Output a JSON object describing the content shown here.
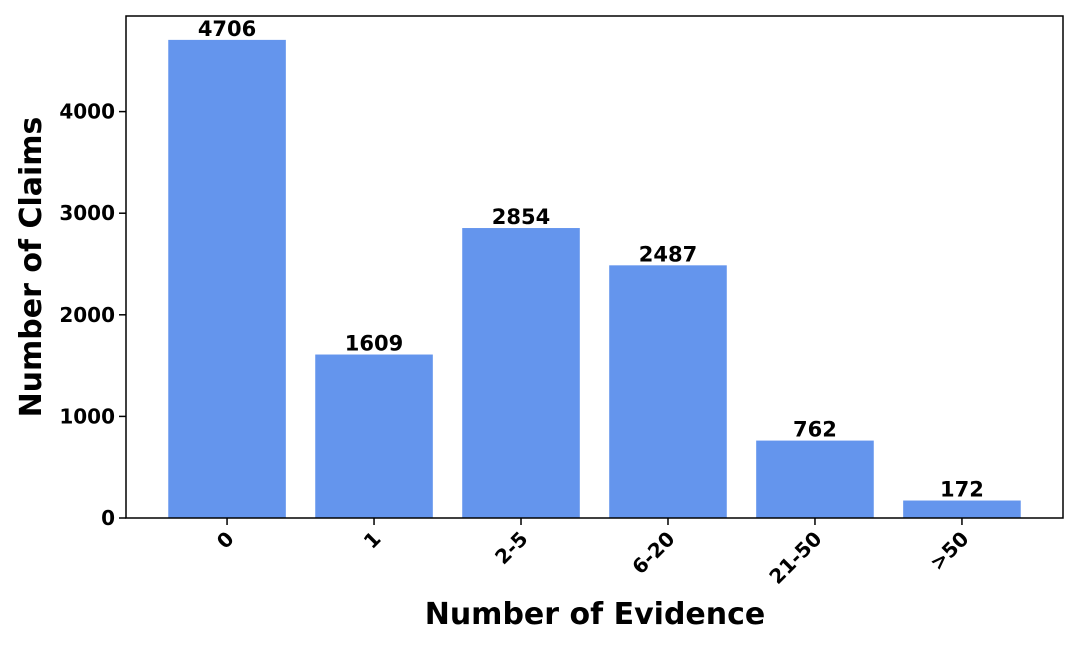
{
  "chart_data": {
    "type": "bar",
    "x_label": "Number of Evidence",
    "y_label": "Number of Claims",
    "categories": [
      "0",
      "1",
      "2-5",
      "6-20",
      "21-50",
      ">50"
    ],
    "values": [
      4706,
      1609,
      2854,
      2487,
      762,
      172
    ],
    "color": "#6495ed",
    "ylim": [
      0,
      4941
    ],
    "yticks": [
      0,
      1000,
      2000,
      3000,
      4000
    ],
    "grid": false
  }
}
